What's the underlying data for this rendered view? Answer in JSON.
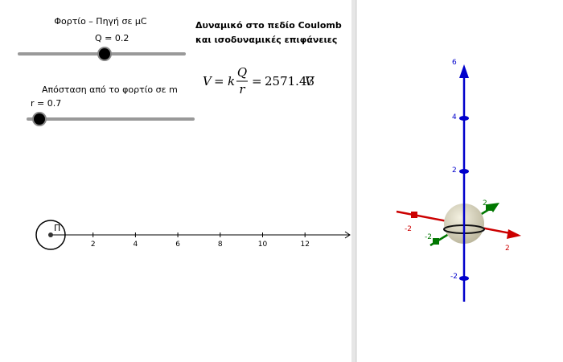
{
  "left_panel": {
    "charge_slider": {
      "caption": "Φορτίο – Πηγή σε μC",
      "label": "Q = 0.2"
    },
    "distance_slider": {
      "caption": "Απόσταση από το φορτίο σε m",
      "label": "r = 0.7"
    },
    "title": [
      "Δυναμικό στο πεδίο Coulomb",
      "και ισοδυναμικές επιφάνειες"
    ],
    "formula": {
      "lhs": "V",
      "equals": "=",
      "k": "k",
      "numerator": "Q",
      "denominator": "r",
      "result": "2571.43",
      "unit": "V"
    },
    "number_line": {
      "origin_label": "Π",
      "ticks": [
        "2",
        "4",
        "6",
        "8",
        "10",
        "12"
      ]
    }
  },
  "view_3d": {
    "z_ticks": [
      "6",
      "4",
      "2",
      "-2"
    ],
    "x_ticks": [
      "-2",
      "2"
    ],
    "y_ticks": [
      "2",
      "-2"
    ]
  }
}
